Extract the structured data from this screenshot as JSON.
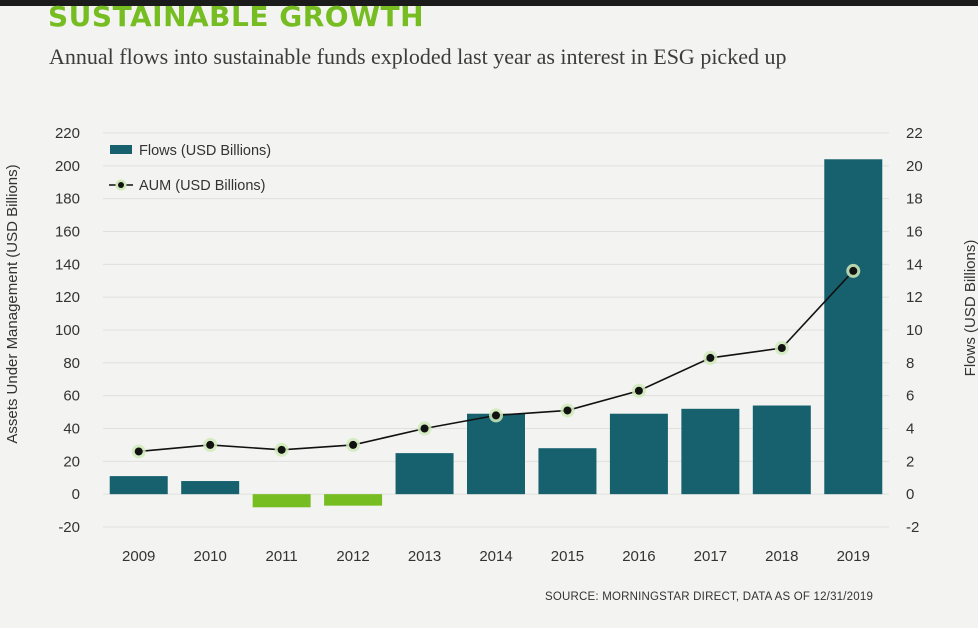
{
  "header": {
    "title": "SUSTAINABLE GROWTH",
    "subtitle": "Annual flows into sustainable funds exploded last year as interest in ESG picked up"
  },
  "footer": {
    "source": "SOURCE: MORNINGSTAR DIRECT, DATA AS OF 12/31/2019"
  },
  "colors": {
    "positive_bar": "#17616f",
    "negative_bar": "#76bd22",
    "line": "#111111",
    "marker_halo": "#cfe9b8"
  },
  "chart_data": {
    "type": "bar",
    "title": "SUSTAINABLE GROWTH",
    "subtitle": "Annual flows into sustainable funds exploded last year as interest in ESG picked up",
    "categories": [
      "2009",
      "2010",
      "2011",
      "2012",
      "2013",
      "2014",
      "2015",
      "2016",
      "2017",
      "2018",
      "2019"
    ],
    "series": [
      {
        "name": "Flows (USD Billions)",
        "type": "bar",
        "axis": "right",
        "values": [
          1.1,
          0.8,
          -0.8,
          -0.7,
          2.5,
          4.9,
          2.8,
          4.9,
          5.2,
          5.4,
          20.4
        ]
      },
      {
        "name": "AUM (USD Billions)",
        "type": "line",
        "axis": "left",
        "values": [
          26,
          30,
          27,
          30,
          40,
          48,
          51,
          63,
          83,
          89,
          136
        ]
      }
    ],
    "ylabel_left": "Assets Under Management (USD Billions)",
    "ylabel_right": "Flows (USD Billions)",
    "ylim_left": [
      -20,
      220
    ],
    "ylim_right": [
      -2,
      22
    ],
    "yticks_left": [
      "220",
      "200",
      "180",
      "160",
      "140",
      "120",
      "100",
      "80",
      "60",
      "40",
      "20",
      "0",
      "-20"
    ],
    "yticks_right": [
      "22",
      "20",
      "18",
      "16",
      "14",
      "12",
      "10",
      "8",
      "6",
      "4",
      "2",
      "0",
      "-2"
    ],
    "legend_position": "top-left",
    "grid": true
  }
}
